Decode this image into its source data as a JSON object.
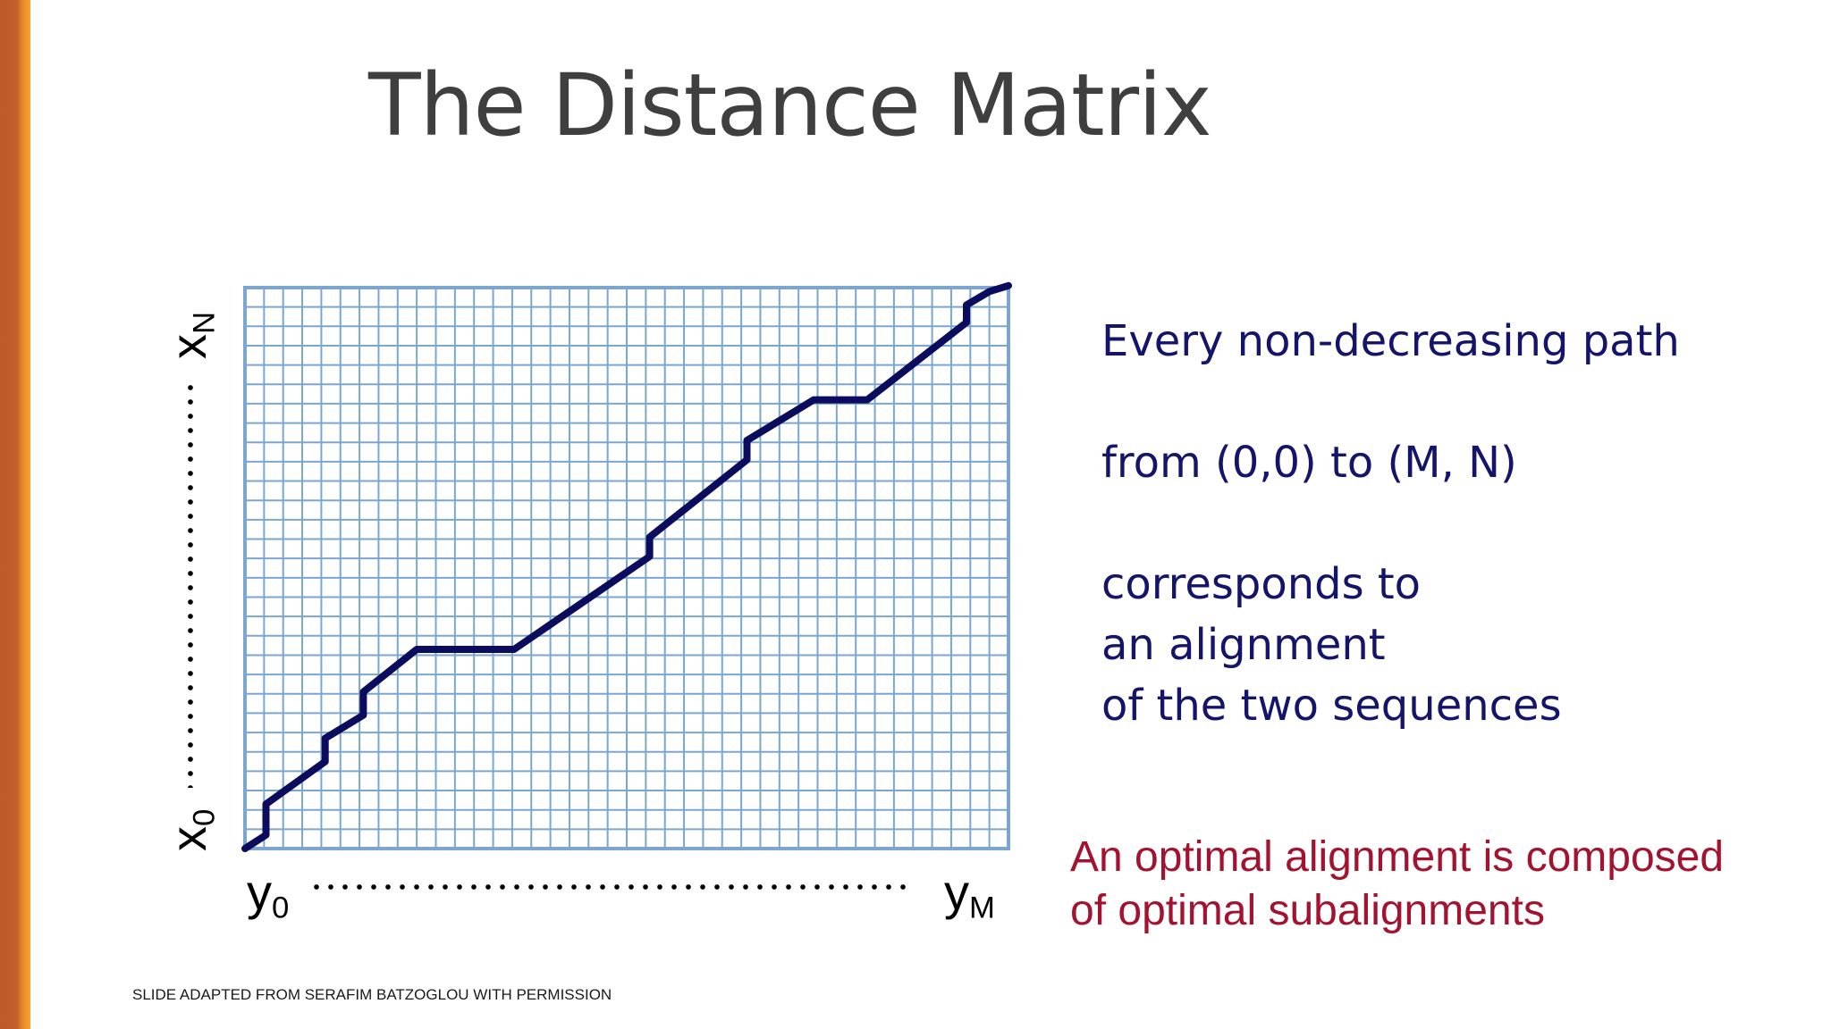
{
  "slide": {
    "title": "The Distance Matrix",
    "credit": "SLIDE ADAPTED FROM SERAFIM BATZOGLOU WITH PERMISSION"
  },
  "axes": {
    "y_axis_start": {
      "base": "y",
      "sub": "0"
    },
    "y_axis_end": {
      "base": "y",
      "sub": "M"
    },
    "x_axis_start": {
      "base": "x",
      "sub": "0"
    },
    "x_axis_end": {
      "base": "x",
      "sub": "N"
    }
  },
  "statement": {
    "line1": "Every non-decreasing path",
    "line2": "from (0,0) to (M, N)",
    "line3": "corresponds to",
    "line4": "an alignment",
    "line5": "of the two sequences"
  },
  "conclusion": {
    "line1": "An optimal alignment is composed",
    "line2": "of optimal subalignments"
  },
  "grid": {
    "columns": 40,
    "rows": 29
  },
  "path": {
    "points": [
      [
        0,
        0
      ],
      [
        1.1,
        0.7
      ],
      [
        1.1,
        2.3
      ],
      [
        4.2,
        4.5
      ],
      [
        4.2,
        5.7
      ],
      [
        6.2,
        6.9
      ],
      [
        6.2,
        8.1
      ],
      [
        9,
        10.3
      ],
      [
        14.1,
        10.3
      ],
      [
        21.2,
        15.1
      ],
      [
        21.2,
        16.1
      ],
      [
        26.3,
        20.1
      ],
      [
        26.3,
        21.1
      ],
      [
        29.8,
        23.2
      ],
      [
        32.6,
        23.2
      ],
      [
        37.8,
        27.2
      ],
      [
        37.8,
        28.1
      ],
      [
        39,
        28.8
      ],
      [
        40,
        29.1
      ]
    ]
  },
  "colors": {
    "accent": "#c0602a",
    "grid_line": "#7ba6cf",
    "path": "#0c0c5e",
    "statement": "#14146b",
    "conclusion": "#a3122e",
    "title": "#3f3f3f"
  }
}
